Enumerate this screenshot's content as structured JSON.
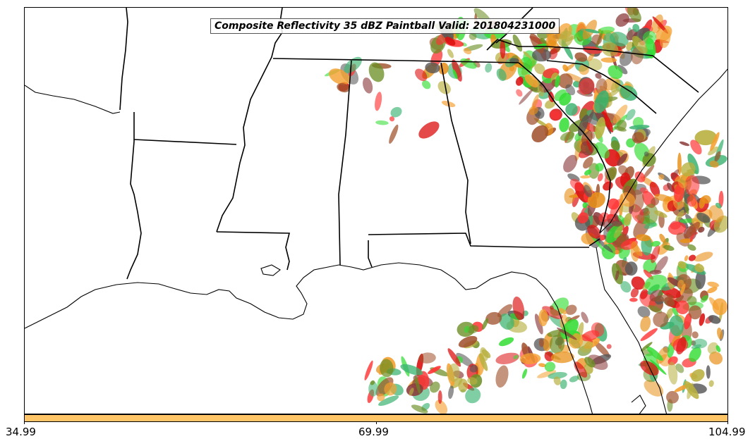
{
  "title": "Composite Reflectivity 35 dBZ Paintball Valid: 201804231000",
  "colorbar": {
    "color": "#FFC566",
    "ticks": [
      "34.99",
      "69.99",
      "104.99"
    ]
  },
  "paintball_colors": [
    "#FF3333",
    "#DD1111",
    "#8B3A3A",
    "#F4A030",
    "#E8901A",
    "#B8B040",
    "#6B8E23",
    "#3CB371",
    "#33DD33",
    "#555555",
    "#A0522D"
  ],
  "map": {
    "region": "southeastern-united-states",
    "state_border_color": "#000000",
    "coastline_color": "#000000"
  }
}
